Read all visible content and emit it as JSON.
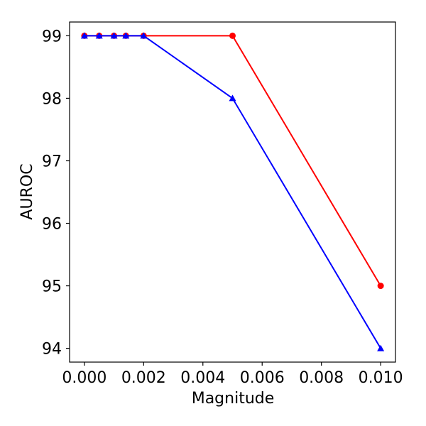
{
  "chart_data": {
    "type": "line",
    "title": "",
    "xlabel": "Magnitude",
    "ylabel": "AUROC",
    "xlim": [
      -0.0005,
      0.0105
    ],
    "ylim": [
      93.78,
      99.22
    ],
    "x_ticks": [
      0.0,
      0.002,
      0.004,
      0.006,
      0.008,
      0.01
    ],
    "x_tick_labels": [
      "0.000",
      "0.002",
      "0.004",
      "0.006",
      "0.008",
      "0.010"
    ],
    "y_ticks": [
      94,
      95,
      96,
      97,
      98,
      99
    ],
    "y_tick_labels": [
      "94",
      "95",
      "96",
      "97",
      "98",
      "99"
    ],
    "grid": false,
    "legend": false,
    "series": [
      {
        "color": "#ff0000",
        "marker": "circle",
        "x": [
          0.0,
          0.0005,
          0.001,
          0.0014,
          0.002,
          0.005,
          0.01
        ],
        "y": [
          99,
          99,
          99,
          99,
          99,
          99,
          95
        ]
      },
      {
        "color": "#0000ff",
        "marker": "triangle",
        "x": [
          0.0,
          0.0005,
          0.001,
          0.0014,
          0.002,
          0.005,
          0.01
        ],
        "y": [
          99,
          99,
          99,
          99,
          99,
          98,
          94
        ]
      }
    ]
  }
}
